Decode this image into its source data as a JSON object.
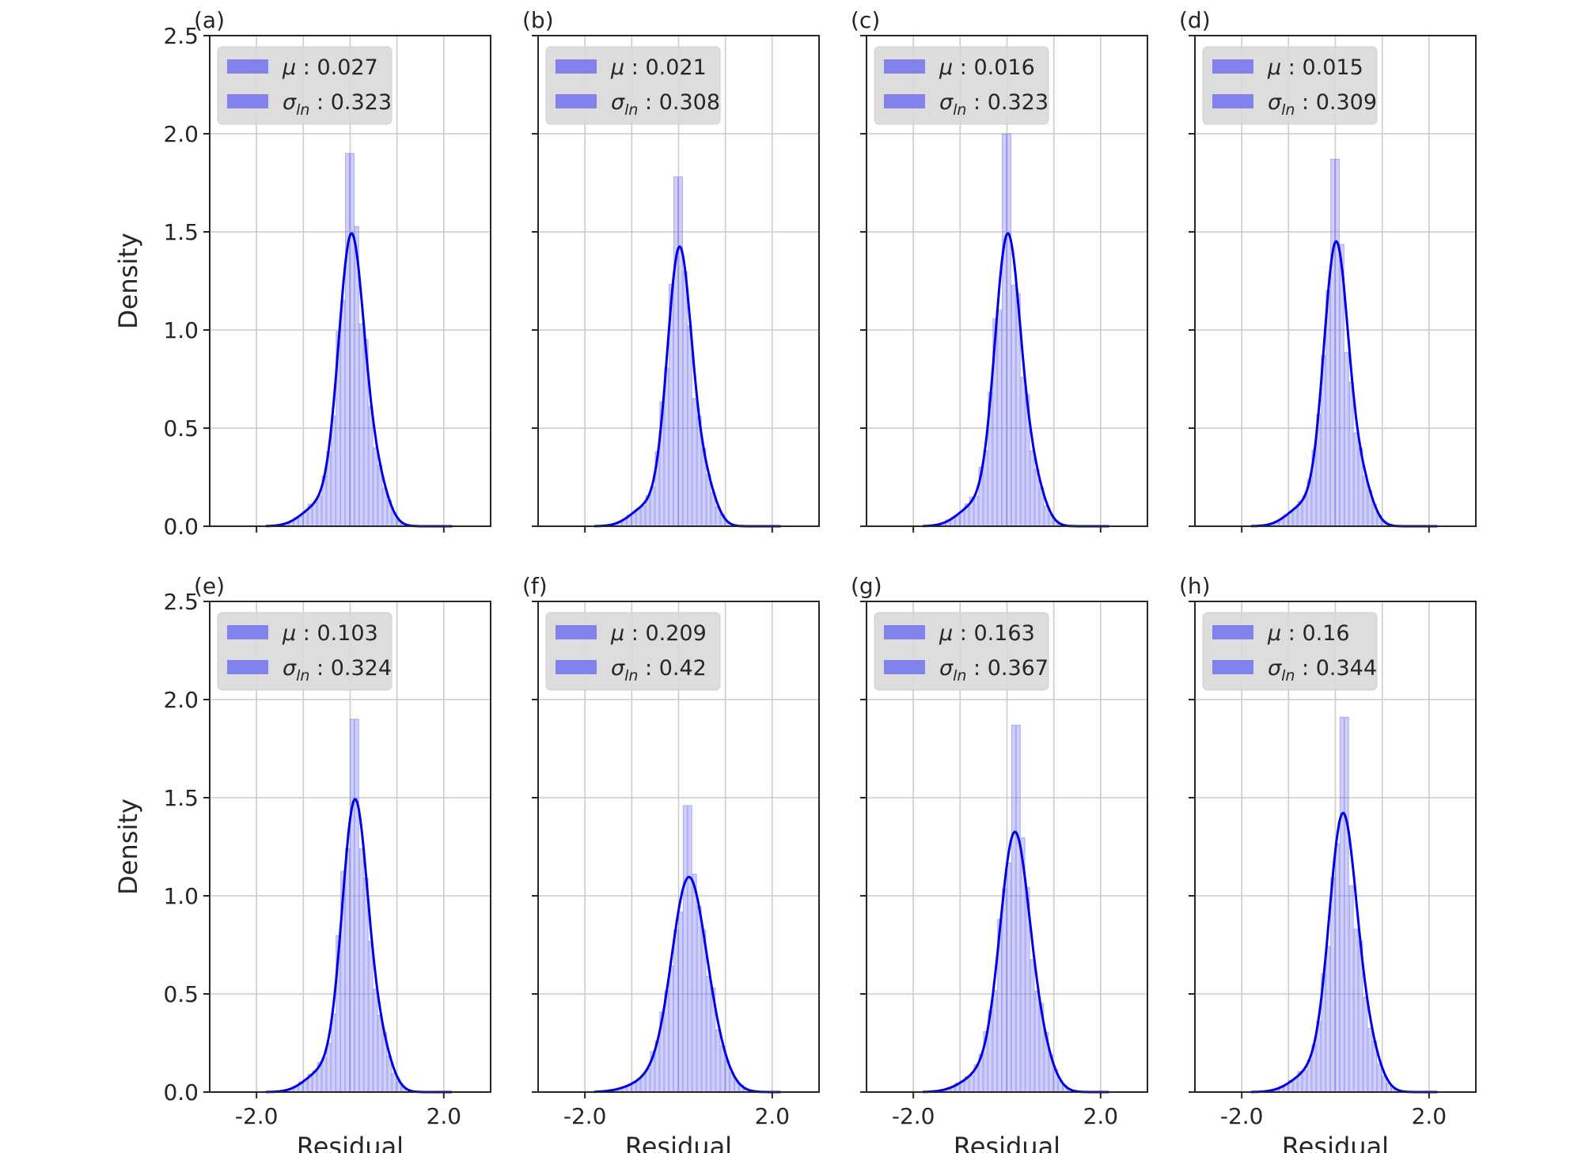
{
  "figure": {
    "shared_xlabel": "Residual",
    "shared_ylabel": "Density",
    "colors": {
      "hist": "#6b6bf0",
      "kde": "#0000e6",
      "legend_bg": "#d9d9d9",
      "grid": "#cccccc",
      "axis": "#262626"
    }
  },
  "chart_data": [
    {
      "panel": "(a)",
      "type": "histogram+kde",
      "xlim": [
        -3.0,
        3.0
      ],
      "ylim": [
        0,
        2.5
      ],
      "xticks": [
        "-2.0",
        "2.0"
      ],
      "yticks": [
        "0.0",
        "0.5",
        "1.0",
        "1.5",
        "2.0",
        "2.5"
      ],
      "legend": {
        "mu_label": "μ",
        "mu_value": "0.027",
        "sigma_label": "σ",
        "sigma_sub": "ln",
        "sigma_value": "0.323"
      },
      "xlabel": "",
      "ylabel": "Density",
      "peak_density": 1.7,
      "hist_peak": 1.9,
      "location": "0.027",
      "scale": 0.323
    },
    {
      "panel": "(b)",
      "type": "histogram+kde",
      "xlim": [
        -3.0,
        3.0
      ],
      "ylim": [
        0,
        2.5
      ],
      "xticks": [
        "-2.0",
        "2.0"
      ],
      "yticks": [],
      "legend": {
        "mu_label": "μ",
        "mu_value": "0.021",
        "sigma_label": "σ",
        "sigma_sub": "ln",
        "sigma_value": "0.308"
      },
      "xlabel": "",
      "ylabel": "",
      "peak_density": 1.63,
      "hist_peak": 1.78,
      "location": "0.021",
      "scale": 0.308
    },
    {
      "panel": "(c)",
      "type": "histogram+kde",
      "xlim": [
        -3.0,
        3.0
      ],
      "ylim": [
        0,
        2.5
      ],
      "xticks": [
        "-2.0",
        "2.0"
      ],
      "yticks": [],
      "legend": {
        "mu_label": "μ",
        "mu_value": "0.016",
        "sigma_label": "σ",
        "sigma_sub": "ln",
        "sigma_value": "0.323"
      },
      "xlabel": "",
      "ylabel": "",
      "peak_density": 1.7,
      "hist_peak": 2.0,
      "location": "0.016",
      "scale": 0.323
    },
    {
      "panel": "(d)",
      "type": "histogram+kde",
      "xlim": [
        -3.0,
        3.0
      ],
      "ylim": [
        0,
        2.5
      ],
      "xticks": [
        "-2.0",
        "2.0"
      ],
      "yticks": [],
      "legend": {
        "mu_label": "μ",
        "mu_value": "0.015",
        "sigma_label": "σ",
        "sigma_sub": "ln",
        "sigma_value": "0.309"
      },
      "xlabel": "",
      "ylabel": "",
      "peak_density": 1.66,
      "hist_peak": 1.87,
      "location": "0.015",
      "scale": 0.309
    },
    {
      "panel": "(e)",
      "type": "histogram+kde",
      "xlim": [
        -3.0,
        3.0
      ],
      "ylim": [
        0,
        2.5
      ],
      "xticks": [
        "-2.0",
        "2.0"
      ],
      "yticks": [
        "0.0",
        "0.5",
        "1.0",
        "1.5",
        "2.0",
        "2.5"
      ],
      "legend": {
        "mu_label": "μ",
        "mu_value": "0.103",
        "sigma_label": "σ",
        "sigma_sub": "ln",
        "sigma_value": "0.324"
      },
      "xlabel": "Residual",
      "ylabel": "Density",
      "peak_density": 1.7,
      "hist_peak": 1.9,
      "location": "0.103",
      "scale": 0.324
    },
    {
      "panel": "(f)",
      "type": "histogram+kde",
      "xlim": [
        -3.0,
        3.0
      ],
      "ylim": [
        0,
        2.5
      ],
      "xticks": [
        "-2.0",
        "2.0"
      ],
      "yticks": [],
      "legend": {
        "mu_label": "μ",
        "mu_value": "0.209",
        "sigma_label": "σ",
        "sigma_sub": "ln",
        "sigma_value": "0.42"
      },
      "xlabel": "Residual",
      "ylabel": "",
      "peak_density": 1.21,
      "hist_peak": 1.46,
      "location": "0.209",
      "scale": 0.42
    },
    {
      "panel": "(g)",
      "type": "histogram+kde",
      "xlim": [
        -3.0,
        3.0
      ],
      "ylim": [
        0,
        2.5
      ],
      "xticks": [
        "-2.0",
        "2.0"
      ],
      "yticks": [],
      "legend": {
        "mu_label": "μ",
        "mu_value": "0.163",
        "sigma_label": "σ",
        "sigma_sub": "ln",
        "sigma_value": "0.367"
      },
      "xlabel": "Residual",
      "ylabel": "",
      "peak_density": 1.49,
      "hist_peak": 1.87,
      "location": "0.163",
      "scale": 0.367
    },
    {
      "panel": "(h)",
      "type": "histogram+kde",
      "xlim": [
        -3.0,
        3.0
      ],
      "ylim": [
        0,
        2.5
      ],
      "xticks": [
        "-2.0",
        "2.0"
      ],
      "yticks": [],
      "legend": {
        "mu_label": "μ",
        "mu_value": "0.16",
        "sigma_label": "σ",
        "sigma_sub": "ln",
        "sigma_value": "0.344"
      },
      "xlabel": "Residual",
      "ylabel": "",
      "peak_density": 1.61,
      "hist_peak": 1.91,
      "location": "0.16",
      "scale": 0.344
    }
  ]
}
